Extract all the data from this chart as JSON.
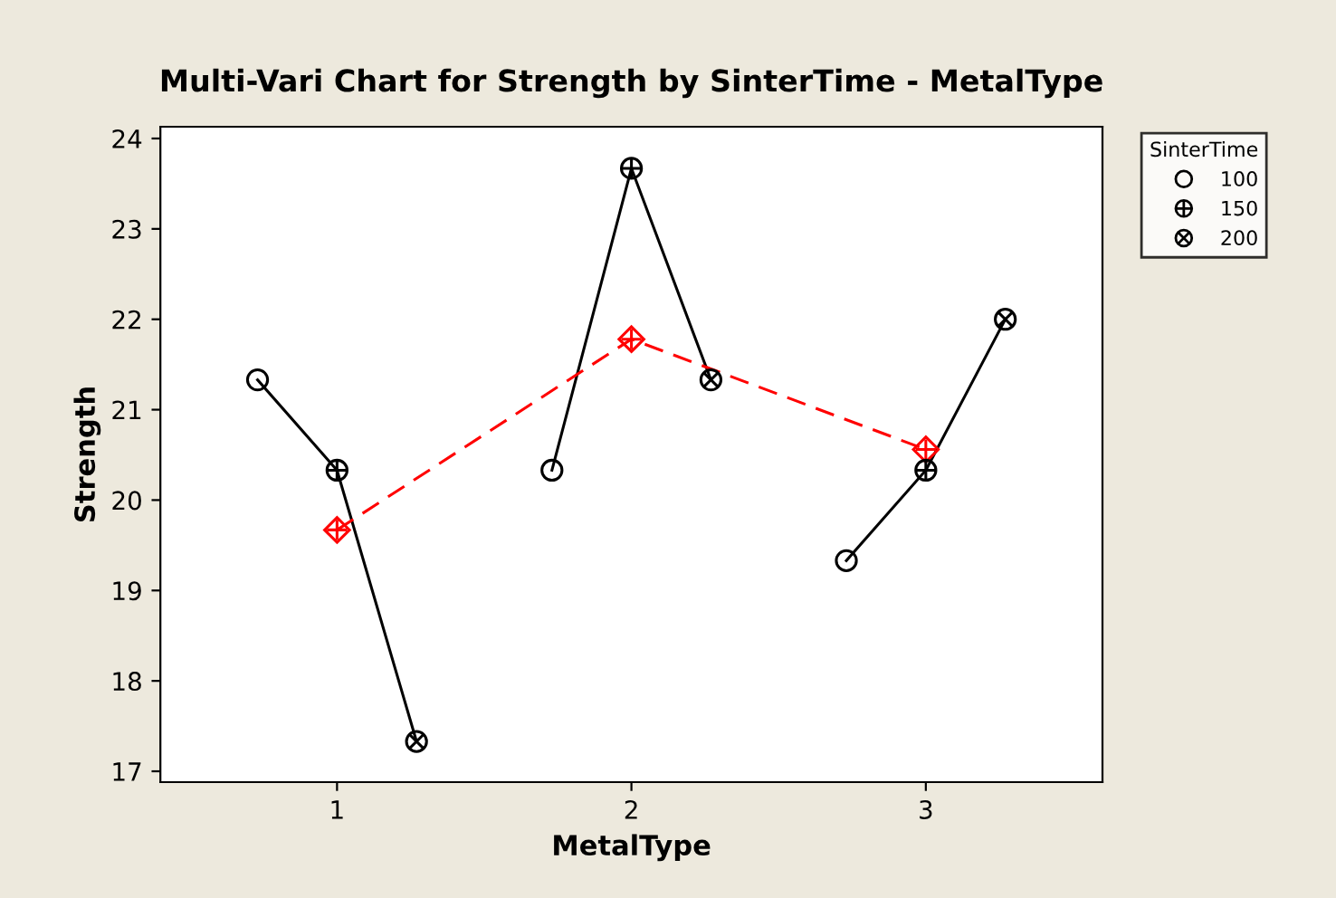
{
  "chart_data": {
    "type": "line",
    "title": "Multi-Vari Chart for Strength by SinterTime - MetalType",
    "xlabel": "MetalType",
    "ylabel": "Strength",
    "legend_title": "SinterTime",
    "xlim": [
      0.4,
      3.6
    ],
    "xticks": [
      1,
      2,
      3
    ],
    "ylim": [
      16.88,
      24.13
    ],
    "yticks": [
      17,
      18,
      19,
      20,
      21,
      22,
      23,
      24
    ],
    "grid": false,
    "legend": "right",
    "series": [
      {
        "color": "#000000",
        "line_style": "solid",
        "x": [
          0.73,
          1,
          1.27
        ],
        "values": [
          21.33,
          20.33,
          17.33
        ]
      },
      {
        "color": "#000000",
        "line_style": "solid",
        "x": [
          1.73,
          2,
          2.27
        ],
        "values": [
          20.33,
          23.67,
          21.33
        ]
      },
      {
        "color": "#000000",
        "line_style": "solid",
        "x": [
          2.73,
          3,
          3.27
        ],
        "values": [
          19.33,
          20.33,
          22.0
        ]
      },
      {
        "color": "#ff0000",
        "marker": "diamond-plus",
        "line_style": "dashed",
        "x": [
          1,
          2,
          3
        ],
        "values": [
          19.67,
          21.78,
          20.56
        ]
      },
      {
        "type": "scatter",
        "name": "100",
        "color": "#000000",
        "marker": "circle",
        "x": [
          0.73,
          1.73,
          2.73
        ],
        "values": [
          21.33,
          20.33,
          19.33
        ]
      },
      {
        "type": "scatter",
        "name": "150",
        "color": "#000000",
        "marker": "circle-plus",
        "x": [
          1,
          2,
          3
        ],
        "values": [
          20.33,
          23.67,
          20.33
        ]
      },
      {
        "type": "scatter",
        "name": "200",
        "color": "#000000",
        "marker": "circle-x",
        "x": [
          1.27,
          2.27,
          3.27
        ],
        "values": [
          17.33,
          21.33,
          22.0
        ]
      }
    ]
  }
}
